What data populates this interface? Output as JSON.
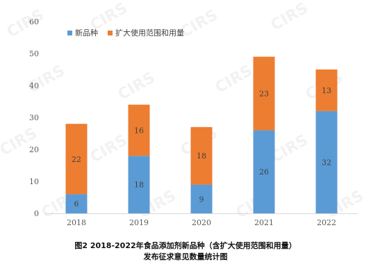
{
  "caption": {
    "line1": "图2 2018-2022年食品添加剂新品种（含扩大使用范围和用量）",
    "line2": "发布征求意见数量统计图"
  },
  "watermark": "CIRS",
  "chart_data": {
    "type": "bar",
    "stacked": true,
    "categories": [
      "2018",
      "2019",
      "2020",
      "2021",
      "2022"
    ],
    "series": [
      {
        "name": "新品种",
        "values": [
          6,
          18,
          9,
          26,
          32
        ],
        "color": "#5b9bd5"
      },
      {
        "name": "扩大使用范围和用量",
        "values": [
          22,
          16,
          18,
          23,
          13
        ],
        "color": "#ed7d31"
      }
    ],
    "yticks": [
      0,
      10,
      20,
      30,
      40,
      50,
      60
    ],
    "ylim": [
      0,
      60
    ],
    "grid": false,
    "legend": "top-left"
  }
}
